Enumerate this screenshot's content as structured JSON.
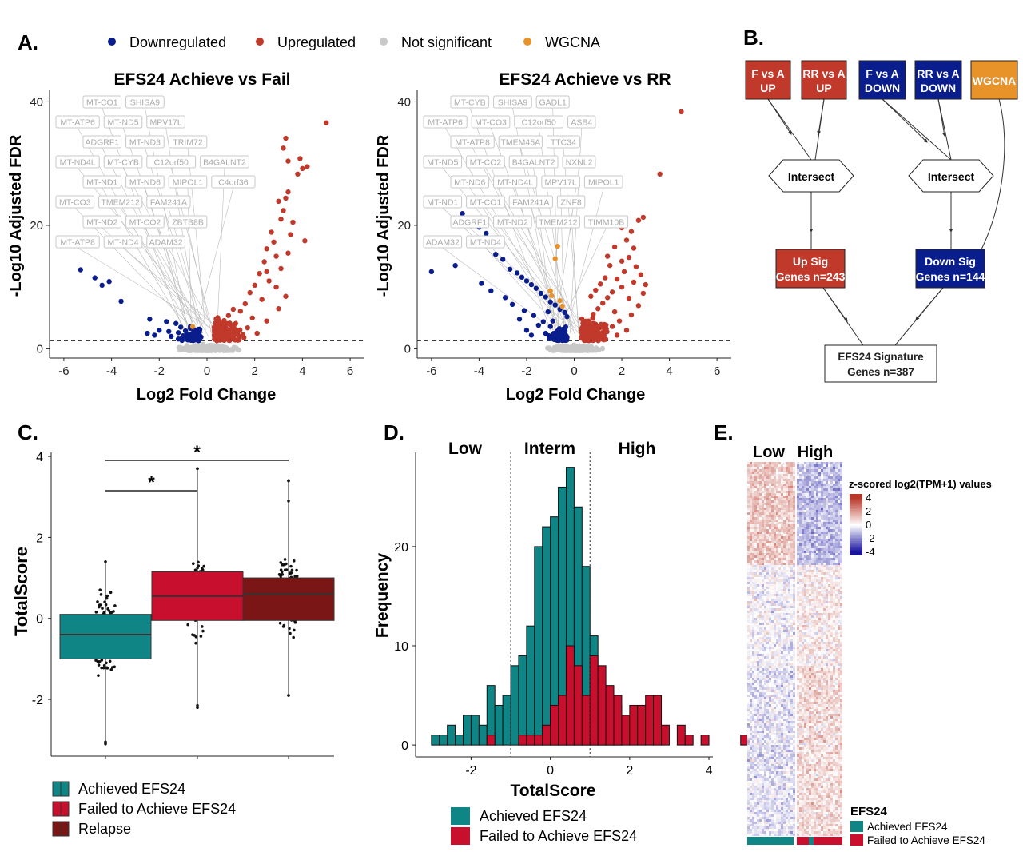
{
  "panels": {
    "a": "A.",
    "b": "B.",
    "c": "C.",
    "d": "D.",
    "e": "E."
  },
  "legend_a": {
    "items": [
      {
        "label": "Downregulated",
        "color": "#0a1d8c"
      },
      {
        "label": "Upregulated",
        "color": "#c0392b"
      },
      {
        "label": "Not significant",
        "color": "#c8c8c8"
      },
      {
        "label": "WGCNA",
        "color": "#e8922a"
      }
    ]
  },
  "colors": {
    "down": "#0a1d8c",
    "up": "#c0392b",
    "ns": "#c8c8c8",
    "wgcna": "#e8922a",
    "teal": "#108585",
    "crimson": "#c8102e",
    "darkred": "#7a1616"
  },
  "chart_data": [
    {
      "id": "volcano1",
      "type": "scatter",
      "title": "EFS24 Achieve vs Fail",
      "xlabel": "Log2 Fold Change",
      "ylabel": "-Log10 Adjusted FDR",
      "xticks": [
        -6,
        -4,
        -2,
        0,
        2,
        4,
        6
      ],
      "yticks": [
        0,
        20,
        40
      ],
      "xlim": [
        -6.6,
        6.6
      ],
      "ylim": [
        -1.5,
        42
      ],
      "threshold_y": 1.3,
      "gene_labels": [
        [
          "MT-CO1",
          "SHISA9"
        ],
        [
          "MT-ATP6",
          "MT-ND5",
          "MPV17L"
        ],
        [
          "ADGRF1",
          "MT-ND3",
          "TRIM72"
        ],
        [
          "MT-ND4L",
          "MT-CYB",
          "C12orf50",
          "B4GALNT2"
        ],
        [
          "MT-ND1",
          "MT-ND6",
          "MIPOL1",
          "C4orf36"
        ],
        [
          "MT-CO3",
          "TMEM212",
          "FAM241A"
        ],
        [
          "MT-ND2",
          "MT-CO2",
          "ZBTB8B"
        ],
        [
          "MT-ATP8",
          "MT-ND4",
          "ADAM32"
        ]
      ],
      "series": [
        {
          "group": "down",
          "points": [
            [
              -5.3,
              12.8
            ],
            [
              -4.7,
              11.5
            ],
            [
              -4.4,
              10.3
            ],
            [
              -4.1,
              10.9
            ],
            [
              -3.6,
              7.7
            ],
            [
              -2.4,
              4.8
            ],
            [
              -2.5,
              2.5
            ],
            [
              -2.2,
              2.2
            ],
            [
              -2.0,
              3.0
            ],
            [
              -1.7,
              4.4
            ],
            [
              -1.6,
              2.8
            ],
            [
              -1.5,
              2.0
            ],
            [
              -1.3,
              4.1
            ],
            [
              -1.2,
              2.6
            ],
            [
              -1.1,
              3.5
            ],
            [
              -1.0,
              2.1
            ],
            [
              -0.9,
              2.9
            ],
            [
              -0.8,
              1.9
            ],
            [
              -0.7,
              3.3
            ],
            [
              -0.6,
              2.4
            ],
            [
              -0.5,
              2.0
            ],
            [
              -0.45,
              2.8
            ],
            [
              -0.35,
              2.2
            ],
            [
              -0.3,
              3.1
            ],
            [
              -0.25,
              1.9
            ]
          ]
        },
        {
          "group": "wgcna",
          "points": [
            [
              -0.6,
              3.6
            ]
          ]
        },
        {
          "group": "up",
          "points": [
            [
              5.0,
              36.6
            ],
            [
              4.2,
              29.5
            ],
            [
              3.9,
              30.8
            ],
            [
              4.0,
              29.2
            ],
            [
              3.8,
              28.3
            ],
            [
              3.3,
              34.1
            ],
            [
              3.2,
              32.5
            ],
            [
              3.4,
              25.4
            ],
            [
              3.3,
              24.4
            ],
            [
              3.0,
              23.9
            ],
            [
              3.2,
              22.4
            ],
            [
              3.1,
              21.0
            ],
            [
              3.6,
              20.5
            ],
            [
              3.4,
              30.4
            ],
            [
              2.7,
              18.9
            ],
            [
              2.8,
              17.3
            ],
            [
              2.5,
              16.2
            ],
            [
              2.9,
              15.0
            ],
            [
              2.4,
              14.1
            ],
            [
              2.2,
              12.2
            ],
            [
              2.6,
              11.0
            ],
            [
              2.0,
              10.3
            ],
            [
              1.8,
              9.1
            ],
            [
              2.3,
              8.0
            ],
            [
              1.6,
              7.3
            ],
            [
              1.4,
              6.1
            ],
            [
              1.9,
              5.0
            ],
            [
              1.2,
              4.1
            ],
            [
              1.0,
              3.1
            ],
            [
              0.8,
              2.2
            ],
            [
              0.6,
              1.9
            ],
            [
              0.4,
              2.4
            ],
            [
              0.3,
              3.5
            ],
            [
              0.5,
              4.6
            ],
            [
              0.9,
              5.4
            ],
            [
              1.1,
              6.4
            ],
            [
              1.5,
              2.3
            ],
            [
              1.7,
              3.4
            ],
            [
              2.1,
              2.5
            ],
            [
              2.5,
              4.5
            ],
            [
              3.0,
              6.5
            ],
            [
              3.3,
              8.5
            ],
            [
              2.9,
              10.0
            ],
            [
              2.5,
              12.5
            ],
            [
              3.1,
              13.0
            ],
            [
              3.4,
              15.5
            ],
            [
              3.5,
              18.5
            ],
            [
              4.1,
              17.5
            ]
          ]
        }
      ],
      "ns_cloud": true
    },
    {
      "id": "volcano2",
      "type": "scatter",
      "title": "EFS24 Achieve vs RR",
      "xlabel": "Log2 Fold Change",
      "ylabel": "-Log10 Adjusted FDR",
      "xticks": [
        -6,
        -4,
        -2,
        0,
        2,
        4,
        6
      ],
      "yticks": [
        0,
        20,
        40
      ],
      "xlim": [
        -6.6,
        6.6
      ],
      "ylim": [
        -1.5,
        42
      ],
      "threshold_y": 1.3,
      "gene_labels": [
        [
          "MT-CYB",
          "SHISA9",
          "GADL1"
        ],
        [
          "MT-ATP6",
          "MT-CO3",
          "C12orf50",
          "ASB4"
        ],
        [
          "MT-ATP8",
          "TMEM45A",
          "TTC34"
        ],
        [
          "MT-ND5",
          "MT-CO2",
          "B4GALNT2",
          "NXNL2"
        ],
        [
          "MT-ND6",
          "MT-ND4L",
          "MPV17L",
          "MIPOL1"
        ],
        [
          "MT-ND1",
          "MT-CO1",
          "FAM241A",
          "ZNF8"
        ],
        [
          "ADGRF1",
          "MT-ND2",
          "TMEM212",
          "TIMM10B"
        ],
        [
          "ADAM32",
          "MT-ND4"
        ]
      ],
      "series": [
        {
          "group": "down",
          "points": [
            [
              -5.5,
              23.6
            ],
            [
              -4.7,
              21.9
            ],
            [
              -4.0,
              19.7
            ],
            [
              -3.7,
              18.7
            ],
            [
              -3.5,
              16.7
            ],
            [
              -3.3,
              15.3
            ],
            [
              -3.0,
              14.5
            ],
            [
              -6.0,
              12.5
            ],
            [
              -5.0,
              13.5
            ],
            [
              -2.7,
              12.9
            ],
            [
              -2.4,
              12.3
            ],
            [
              -2.2,
              11.6
            ],
            [
              -2.0,
              11.0
            ],
            [
              -1.8,
              10.4
            ],
            [
              -1.6,
              9.8
            ],
            [
              -1.4,
              9.0
            ],
            [
              -1.2,
              8.4
            ],
            [
              -1.0,
              7.6
            ],
            [
              -0.8,
              7.1
            ],
            [
              -0.6,
              6.4
            ],
            [
              -0.4,
              5.9
            ],
            [
              -0.3,
              5.2
            ],
            [
              -3.9,
              10.6
            ],
            [
              -3.5,
              9.4
            ],
            [
              -2.9,
              8.3
            ],
            [
              -2.6,
              7.2
            ],
            [
              -2.1,
              6.2
            ],
            [
              -1.7,
              5.4
            ],
            [
              -1.3,
              4.4
            ],
            [
              -1.0,
              3.6
            ],
            [
              -0.7,
              2.9
            ],
            [
              -0.5,
              2.4
            ],
            [
              -2.0,
              3.0
            ],
            [
              -1.8,
              2.2
            ],
            [
              -1.5,
              3.8
            ],
            [
              -1.2,
              2.5
            ],
            [
              -0.9,
              4.5
            ],
            [
              -2.3,
              4.8
            ],
            [
              -1.1,
              6.0
            ]
          ]
        },
        {
          "group": "wgcna",
          "points": [
            [
              -0.9,
              20.0
            ],
            [
              -0.7,
              16.6
            ],
            [
              -0.8,
              14.6
            ],
            [
              -1.0,
              9.4
            ],
            [
              -0.6,
              7.8
            ],
            [
              -0.5,
              6.9
            ],
            [
              -0.95,
              8.6
            ]
          ]
        },
        {
          "group": "up",
          "points": [
            [
              4.5,
              38.4
            ],
            [
              3.6,
              28.3
            ],
            [
              1.6,
              20.0
            ],
            [
              2.0,
              19.6
            ],
            [
              2.9,
              21.3
            ],
            [
              2.7,
              20.8
            ],
            [
              2.4,
              19.0
            ],
            [
              2.2,
              17.6
            ],
            [
              2.5,
              16.3
            ],
            [
              2.3,
              14.8
            ],
            [
              2.6,
              13.3
            ],
            [
              2.1,
              12.5
            ],
            [
              1.8,
              11.3
            ],
            [
              2.0,
              10.0
            ],
            [
              1.6,
              9.2
            ],
            [
              1.4,
              8.3
            ],
            [
              1.2,
              7.4
            ],
            [
              1.0,
              6.5
            ],
            [
              0.8,
              5.6
            ],
            [
              0.6,
              4.5
            ],
            [
              0.5,
              3.5
            ],
            [
              0.4,
              2.5
            ],
            [
              0.3,
              1.9
            ],
            [
              1.5,
              13.5
            ],
            [
              1.3,
              11.5
            ],
            [
              1.1,
              10.5
            ],
            [
              0.9,
              9.5
            ],
            [
              0.7,
              8.5
            ],
            [
              1.7,
              6.0
            ],
            [
              1.9,
              4.5
            ],
            [
              2.2,
              3.0
            ],
            [
              1.8,
              2.2
            ],
            [
              1.3,
              2.8
            ],
            [
              1.6,
              3.6
            ],
            [
              2.4,
              5.5
            ],
            [
              2.7,
              7.0
            ],
            [
              2.9,
              9.0
            ],
            [
              2.5,
              10.8
            ],
            [
              1.4,
              15.0
            ],
            [
              1.7,
              16.5
            ],
            [
              2.0,
              14.2
            ],
            [
              2.8,
              12.0
            ],
            [
              3.0,
              10.4
            ],
            [
              2.3,
              8.2
            ]
          ]
        }
      ],
      "ns_cloud": true
    },
    {
      "id": "boxplot",
      "type": "box",
      "ylabel": "TotalScore",
      "yticks": [
        -2,
        0,
        2,
        4
      ],
      "ylim": [
        -3.4,
        4.1
      ],
      "groups": [
        {
          "name": "Achieved EFS24",
          "q1": -1.0,
          "median": -0.4,
          "q3": 0.1,
          "min": -3.1,
          "max": 1.4,
          "n": 220,
          "color": "#108585"
        },
        {
          "name": "Failed to Achieve EFS24",
          "q1": -0.05,
          "median": 0.55,
          "q3": 1.15,
          "min": -2.2,
          "max": 3.7,
          "n": 90,
          "color": "#c8102e"
        },
        {
          "name": "Relapse",
          "q1": -0.05,
          "median": 0.6,
          "q3": 1.0,
          "min": -1.9,
          "max": 3.4,
          "n": 170,
          "color": "#7a1616"
        }
      ],
      "significance": [
        {
          "from": 0,
          "to": 1,
          "label": "*"
        },
        {
          "from": 0,
          "to": 2,
          "label": "*"
        }
      ],
      "legend": [
        "Achieved EFS24",
        "Failed to Achieve EFS24",
        "Relapse"
      ]
    },
    {
      "id": "histogram",
      "type": "bar",
      "xlabel": "TotalScore",
      "ylabel": "Frequency",
      "xticks": [
        -2,
        0,
        2,
        4
      ],
      "yticks": [
        0,
        10,
        20
      ],
      "xlim": [
        -3.4,
        4.1
      ],
      "ylim": [
        -1.2,
        29.5
      ],
      "bin_width": 0.2,
      "bin_start": -3.0,
      "achieved": [
        1,
        1,
        2,
        1,
        3,
        3,
        2,
        6,
        4,
        5,
        8,
        9,
        12,
        20,
        22,
        23,
        26,
        28,
        24,
        18,
        11,
        6,
        2,
        4,
        0,
        0,
        0,
        0,
        0,
        0,
        0,
        0,
        0,
        0,
        0,
        0,
        0,
        0,
        0,
        0
      ],
      "failed": [
        0,
        0,
        0,
        0,
        0,
        0,
        0,
        1,
        0,
        0,
        0,
        1,
        1,
        1,
        2,
        4,
        5,
        10,
        8,
        5,
        9,
        8,
        6,
        5,
        3,
        4,
        4,
        5,
        5,
        2,
        0,
        2,
        1,
        0,
        1,
        0,
        0,
        0,
        0,
        1
      ],
      "cutoffs": [
        -1.0,
        1.0
      ],
      "regions": [
        "Low",
        "Interm",
        "High"
      ],
      "legend": [
        "Achieved EFS24",
        "Failed to Achieve EFS24"
      ]
    },
    {
      "id": "heatmap",
      "type": "heatmap",
      "col_groups": [
        "Low",
        "High"
      ],
      "colorbar_title": "z-scored log2(TPM+1) values",
      "colorbar_ticks": [
        4,
        2,
        0,
        -2,
        -4
      ],
      "legend_title": "EFS24",
      "legend": [
        "Achieved EFS24",
        "Failed to Achieve EFS24"
      ]
    }
  ],
  "flowchart": {
    "boxes_top": [
      {
        "label": "F vs A\nUP",
        "kind": "up"
      },
      {
        "label": "RR vs A\nUP",
        "kind": "up"
      },
      {
        "label": "F vs A\nDOWN",
        "kind": "down"
      },
      {
        "label": "RR vs A\nDOWN",
        "kind": "down"
      },
      {
        "label": "WGCNA",
        "kind": "wgcna"
      }
    ],
    "intersect_label": "Intersect",
    "up_sig": "Up Sig\nGenes n=243",
    "down_sig": "Down Sig\nGenes n=144",
    "signature": "EFS24 Signature\nGenes n=387"
  }
}
